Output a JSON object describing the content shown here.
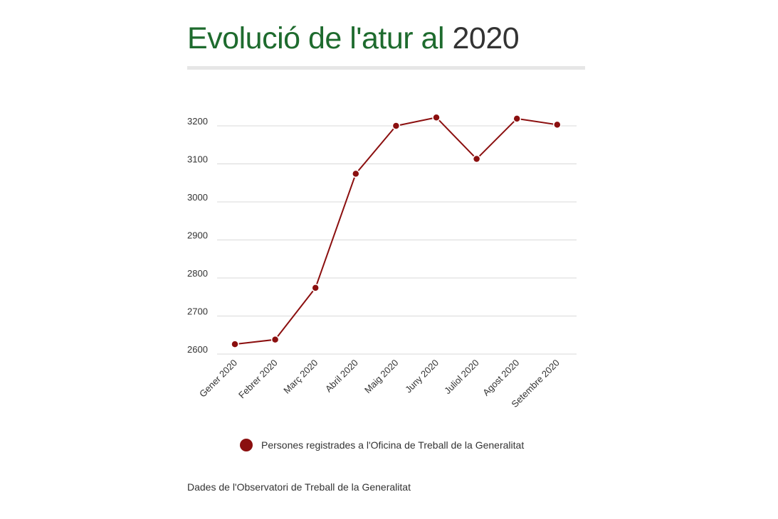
{
  "title": {
    "main": "Evolució de l'atur al",
    "year": "2020"
  },
  "chart_data": {
    "type": "line",
    "categories": [
      "Gener 2020",
      "Febrer 2020",
      "Març 2020",
      "Abril 2020",
      "Maig 2020",
      "Juny 2020",
      "Juliol 2020",
      "Agost 2020",
      "Setembre 2020"
    ],
    "series": [
      {
        "name": "Persones registrades a l'Oficina de Treball de la Generalitat",
        "values": [
          2626,
          2638,
          2774,
          3074,
          3200,
          3222,
          3113,
          3219,
          3203
        ],
        "color": "#8b0f0f"
      }
    ],
    "ylim": [
      2600,
      3200
    ],
    "yticks": [
      2600,
      2700,
      2800,
      2900,
      3000,
      3100,
      3200
    ],
    "grid": true,
    "legend": "bottom"
  },
  "legend": {
    "label": "Persones registrades a l'Oficina de Treball de la Generalitat"
  },
  "source": "Dades de l'Observatori de Treball de la Generalitat"
}
